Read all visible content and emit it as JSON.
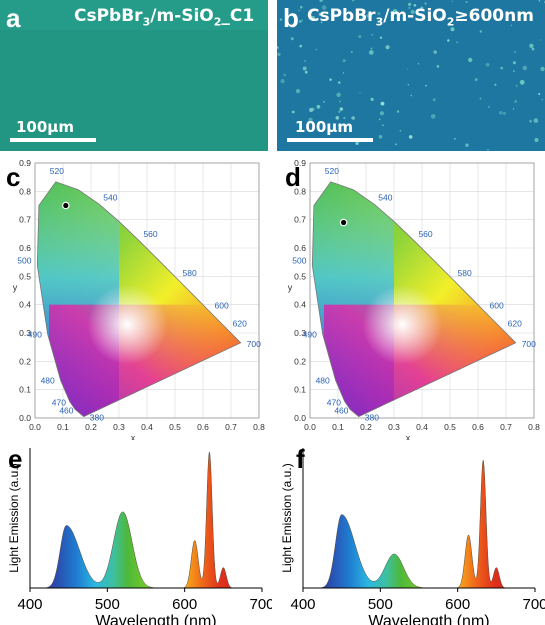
{
  "panels": {
    "a": {
      "letter": "a",
      "title_pre": "CsPbBr",
      "title_sub1": "3",
      "title_mid": "/m-SiO",
      "title_sub2": "2",
      "title_post": "_C1",
      "scale_label": "100μm"
    },
    "b": {
      "letter": "b",
      "title_pre": "CsPbBr",
      "title_sub1": "3",
      "title_mid": "/m-SiO",
      "title_sub2": "2",
      "title_post": "≥600nm",
      "scale_label": "100μm"
    },
    "c": {
      "letter": "c"
    },
    "d": {
      "letter": "d"
    },
    "e": {
      "letter": "e"
    },
    "f": {
      "letter": "f"
    }
  },
  "cie_axes": {
    "xlabel": "x",
    "ylabel": "y",
    "xticks": [
      "0.0",
      "0.1",
      "0.2",
      "0.3",
      "0.4",
      "0.5",
      "0.6",
      "0.7",
      "0.8"
    ],
    "yticks": [
      "0.0",
      "0.1",
      "0.2",
      "0.3",
      "0.4",
      "0.5",
      "0.6",
      "0.7",
      "0.8",
      "0.9"
    ],
    "wavelength_labels": [
      "380",
      "460",
      "470",
      "480",
      "490",
      "500",
      "520",
      "540",
      "560",
      "580",
      "600",
      "620",
      "700"
    ]
  },
  "spectrum_axes": {
    "xlabel": "Wavelength (nm)",
    "ylabel": "Light Emission (a.u.)",
    "xticks": [
      "400",
      "500",
      "600",
      "700"
    ]
  },
  "chart_data": [
    {
      "panel": "c",
      "type": "scatter",
      "xlabel": "x",
      "ylabel": "y",
      "xlim": [
        0,
        0.8
      ],
      "ylim": [
        0,
        0.9
      ],
      "points": [
        {
          "x": 0.11,
          "y": 0.75
        }
      ]
    },
    {
      "panel": "d",
      "type": "scatter",
      "xlabel": "x",
      "ylabel": "y",
      "xlim": [
        0,
        0.8
      ],
      "ylim": [
        0,
        0.9
      ],
      "points": [
        {
          "x": 0.12,
          "y": 0.69
        }
      ]
    },
    {
      "panel": "e",
      "type": "line",
      "xlabel": "Wavelength (nm)",
      "ylabel": "Light Emission (a.u.)",
      "xlim": [
        400,
        700
      ],
      "peaks": [
        {
          "center": 447,
          "height": 0.46
        },
        {
          "center": 520,
          "height": 0.56
        },
        {
          "center": 613,
          "height": 0.35
        },
        {
          "center": 632,
          "height": 1.0
        },
        {
          "center": 650,
          "height": 0.15
        }
      ]
    },
    {
      "panel": "f",
      "type": "line",
      "xlabel": "Wavelength (nm)",
      "ylabel": "Light Emission (a.u.)",
      "xlim": [
        400,
        700
      ],
      "peaks": [
        {
          "center": 450,
          "height": 0.54
        },
        {
          "center": 518,
          "height": 0.25
        },
        {
          "center": 614,
          "height": 0.39
        },
        {
          "center": 633,
          "height": 0.94
        },
        {
          "center": 650,
          "height": 0.15
        }
      ]
    }
  ]
}
